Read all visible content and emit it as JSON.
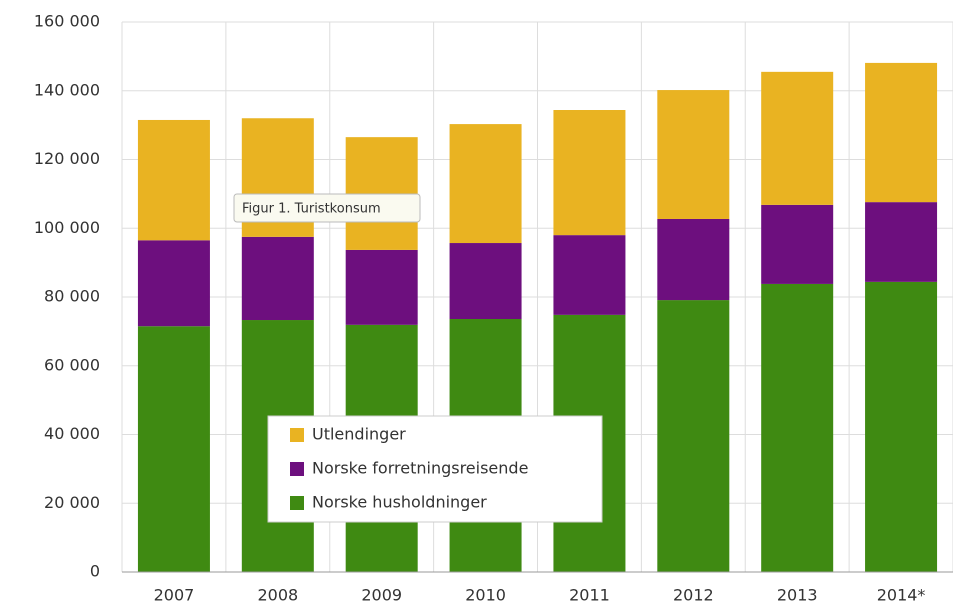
{
  "chart_data": {
    "type": "stacked_bar",
    "tooltip": "Figur 1. Turistkonsum",
    "categories": [
      "2007",
      "2008",
      "2009",
      "2010",
      "2011",
      "2012",
      "2013",
      "2014*"
    ],
    "series": [
      {
        "name": "Norske husholdninger",
        "color": "#3f8a12",
        "values": [
          71500,
          73300,
          71900,
          73600,
          74800,
          79100,
          83800,
          84400
        ]
      },
      {
        "name": "Norske forretningsreisende",
        "color": "#6d0f7e",
        "values": [
          25000,
          24200,
          21800,
          22100,
          23200,
          23600,
          23000,
          23200
        ]
      },
      {
        "name": "Utlendinger",
        "color": "#e9b322",
        "values": [
          35000,
          34500,
          32800,
          34600,
          36400,
          37500,
          38700,
          40500
        ]
      }
    ],
    "ylim": [
      0,
      160000
    ],
    "yticks": [
      0,
      {
        "value": 20000,
        "label": "20 000"
      },
      {
        "value": 40000,
        "label": "40 000"
      },
      {
        "value": 60000,
        "label": "60 000"
      },
      {
        "value": 80000,
        "label": "80 000"
      },
      {
        "value": 100000,
        "label": "100 000"
      },
      {
        "value": 120000,
        "label": "120 000"
      },
      {
        "value": 140000,
        "label": "140 000"
      },
      {
        "value": 160000,
        "label": "160 000"
      }
    ],
    "grid": true
  }
}
